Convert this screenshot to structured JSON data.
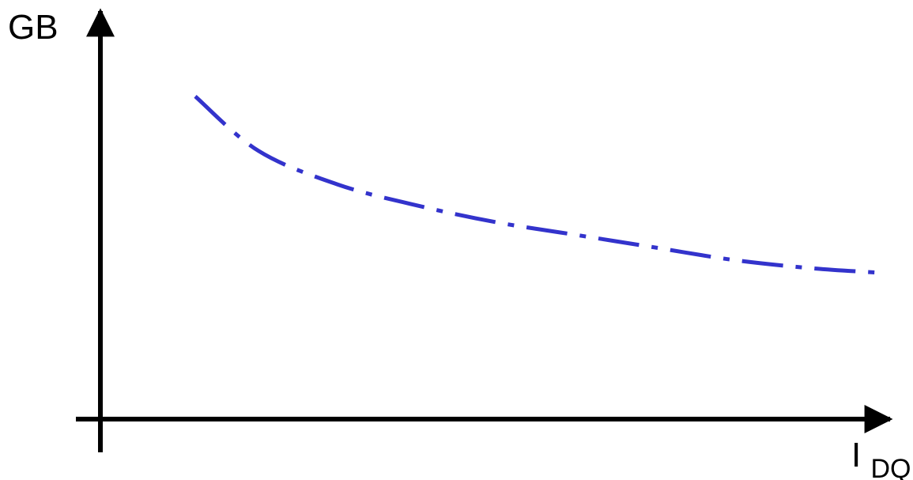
{
  "chart_data": {
    "type": "line",
    "title": "",
    "ylabel": "GB",
    "xlabel": {
      "main": "I",
      "subscript": "DQ"
    },
    "grid": false,
    "legend": "none",
    "series": [
      {
        "color": "#3333cc",
        "line_style": "dash-dot",
        "x": [
          0.12,
          0.2,
          0.3,
          0.4,
          0.5,
          0.6,
          0.7,
          0.8,
          0.9,
          0.98
        ],
        "y": [
          0.77,
          0.64,
          0.56,
          0.51,
          0.47,
          0.44,
          0.41,
          0.38,
          0.36,
          0.35
        ]
      }
    ],
    "xlim": [
      0,
      1
    ],
    "ylim": [
      0,
      1
    ]
  }
}
